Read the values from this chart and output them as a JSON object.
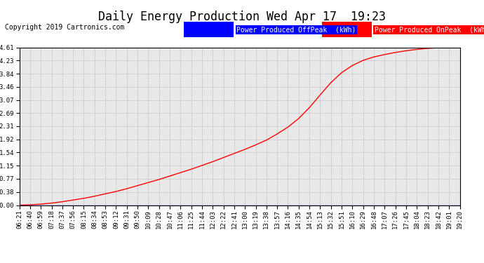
{
  "title": "Daily Energy Production Wed Apr 17  19:23",
  "copyright": "Copyright 2019 Cartronics.com",
  "legend_offpeak": "Power Produced OffPeak  (kWh)",
  "legend_onpeak": "Power Produced OnPeak  (kWh)",
  "legend_offpeak_color": "#0000ff",
  "legend_onpeak_color": "#ff0000",
  "bg_color": "#ffffff",
  "grid_color": "#999999",
  "plot_bg_color": "#e8e8e8",
  "yticks": [
    0.0,
    0.38,
    0.77,
    1.15,
    1.54,
    1.92,
    2.31,
    2.69,
    3.07,
    3.46,
    3.84,
    4.23,
    4.61
  ],
  "ylim": [
    0.0,
    4.61
  ],
  "xtick_labels": [
    "06:21",
    "06:40",
    "06:59",
    "07:18",
    "07:37",
    "07:56",
    "08:15",
    "08:34",
    "08:53",
    "09:12",
    "09:31",
    "09:50",
    "10:09",
    "10:28",
    "10:47",
    "11:06",
    "11:25",
    "11:44",
    "12:03",
    "12:22",
    "12:41",
    "13:00",
    "13:19",
    "13:38",
    "13:57",
    "14:16",
    "14:35",
    "14:54",
    "15:13",
    "15:32",
    "15:51",
    "16:10",
    "16:29",
    "16:48",
    "17:07",
    "17:26",
    "17:45",
    "18:04",
    "18:23",
    "18:42",
    "19:01",
    "19:20"
  ],
  "time_indices": [
    0,
    1,
    2,
    3,
    4,
    5,
    6,
    7,
    8,
    9,
    10,
    11,
    12,
    13,
    14,
    15,
    16,
    17,
    18,
    19,
    20,
    21,
    22,
    23,
    24,
    25,
    26,
    27,
    28,
    29,
    30,
    31,
    32,
    33,
    34,
    35,
    36,
    37,
    38,
    39,
    40,
    41
  ],
  "onpeak_values": [
    0.0,
    0.01,
    0.03,
    0.06,
    0.1,
    0.15,
    0.2,
    0.26,
    0.33,
    0.4,
    0.48,
    0.57,
    0.66,
    0.75,
    0.85,
    0.95,
    1.05,
    1.16,
    1.27,
    1.39,
    1.51,
    1.63,
    1.76,
    1.9,
    2.08,
    2.28,
    2.53,
    2.85,
    3.22,
    3.58,
    3.87,
    4.08,
    4.23,
    4.33,
    4.4,
    4.46,
    4.51,
    4.55,
    4.58,
    4.6,
    4.61,
    4.61
  ],
  "offpeak_values": [
    0.0,
    0.0,
    0.0,
    0.0,
    0.0,
    0.0,
    0.0,
    0.0,
    0.0,
    0.0,
    0.0,
    0.0,
    0.0,
    0.0,
    0.0,
    0.0,
    0.0,
    0.0,
    0.0,
    0.0,
    0.0,
    0.0,
    0.0,
    0.0,
    0.0,
    0.0,
    0.0,
    0.0,
    0.0,
    0.0,
    0.0,
    0.0,
    0.0,
    0.0,
    0.0,
    0.0,
    0.0,
    0.0,
    0.0,
    0.0,
    0.0,
    0.0
  ],
  "title_fontsize": 12,
  "tick_fontsize": 6.5,
  "copyright_fontsize": 7,
  "legend_fontsize": 7
}
